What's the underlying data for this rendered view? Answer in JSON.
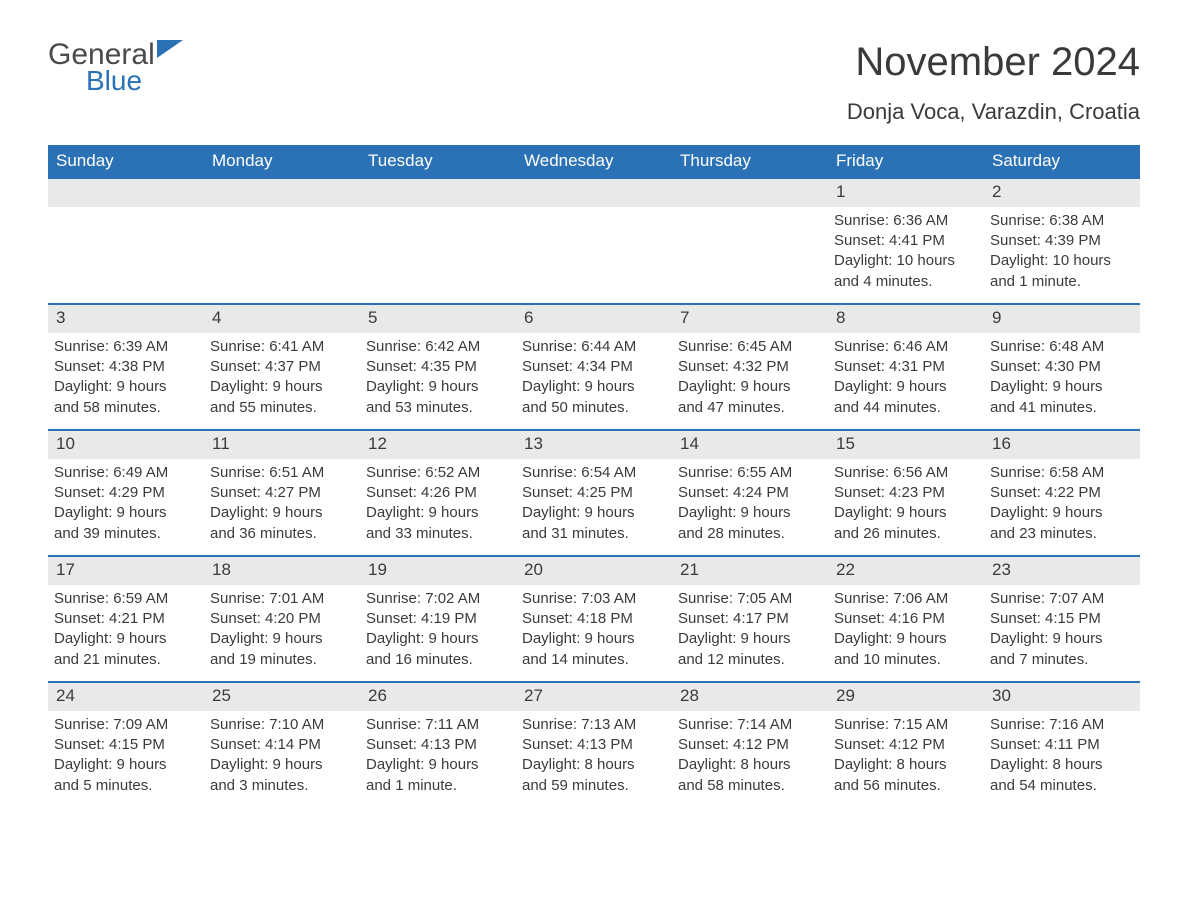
{
  "logo": {
    "general": "General",
    "blue": "Blue"
  },
  "header": {
    "month_title": "November 2024",
    "location": "Donja Voca, Varazdin, Croatia"
  },
  "colors": {
    "header_bg": "#2a72b5",
    "header_text": "#ffffff",
    "daynum_bg": "#e9e9e9",
    "week_border": "#2a72b5",
    "body_text": "#3b3b3b",
    "page_bg": "#ffffff"
  },
  "day_names": [
    "Sunday",
    "Monday",
    "Tuesday",
    "Wednesday",
    "Thursday",
    "Friday",
    "Saturday"
  ],
  "weeks": [
    [
      {
        "day": "",
        "sunrise": "",
        "sunset": "",
        "daylight1": "",
        "daylight2": ""
      },
      {
        "day": "",
        "sunrise": "",
        "sunset": "",
        "daylight1": "",
        "daylight2": ""
      },
      {
        "day": "",
        "sunrise": "",
        "sunset": "",
        "daylight1": "",
        "daylight2": ""
      },
      {
        "day": "",
        "sunrise": "",
        "sunset": "",
        "daylight1": "",
        "daylight2": ""
      },
      {
        "day": "",
        "sunrise": "",
        "sunset": "",
        "daylight1": "",
        "daylight2": ""
      },
      {
        "day": "1",
        "sunrise": "Sunrise: 6:36 AM",
        "sunset": "Sunset: 4:41 PM",
        "daylight1": "Daylight: 10 hours",
        "daylight2": "and 4 minutes."
      },
      {
        "day": "2",
        "sunrise": "Sunrise: 6:38 AM",
        "sunset": "Sunset: 4:39 PM",
        "daylight1": "Daylight: 10 hours",
        "daylight2": "and 1 minute."
      }
    ],
    [
      {
        "day": "3",
        "sunrise": "Sunrise: 6:39 AM",
        "sunset": "Sunset: 4:38 PM",
        "daylight1": "Daylight: 9 hours",
        "daylight2": "and 58 minutes."
      },
      {
        "day": "4",
        "sunrise": "Sunrise: 6:41 AM",
        "sunset": "Sunset: 4:37 PM",
        "daylight1": "Daylight: 9 hours",
        "daylight2": "and 55 minutes."
      },
      {
        "day": "5",
        "sunrise": "Sunrise: 6:42 AM",
        "sunset": "Sunset: 4:35 PM",
        "daylight1": "Daylight: 9 hours",
        "daylight2": "and 53 minutes."
      },
      {
        "day": "6",
        "sunrise": "Sunrise: 6:44 AM",
        "sunset": "Sunset: 4:34 PM",
        "daylight1": "Daylight: 9 hours",
        "daylight2": "and 50 minutes."
      },
      {
        "day": "7",
        "sunrise": "Sunrise: 6:45 AM",
        "sunset": "Sunset: 4:32 PM",
        "daylight1": "Daylight: 9 hours",
        "daylight2": "and 47 minutes."
      },
      {
        "day": "8",
        "sunrise": "Sunrise: 6:46 AM",
        "sunset": "Sunset: 4:31 PM",
        "daylight1": "Daylight: 9 hours",
        "daylight2": "and 44 minutes."
      },
      {
        "day": "9",
        "sunrise": "Sunrise: 6:48 AM",
        "sunset": "Sunset: 4:30 PM",
        "daylight1": "Daylight: 9 hours",
        "daylight2": "and 41 minutes."
      }
    ],
    [
      {
        "day": "10",
        "sunrise": "Sunrise: 6:49 AM",
        "sunset": "Sunset: 4:29 PM",
        "daylight1": "Daylight: 9 hours",
        "daylight2": "and 39 minutes."
      },
      {
        "day": "11",
        "sunrise": "Sunrise: 6:51 AM",
        "sunset": "Sunset: 4:27 PM",
        "daylight1": "Daylight: 9 hours",
        "daylight2": "and 36 minutes."
      },
      {
        "day": "12",
        "sunrise": "Sunrise: 6:52 AM",
        "sunset": "Sunset: 4:26 PM",
        "daylight1": "Daylight: 9 hours",
        "daylight2": "and 33 minutes."
      },
      {
        "day": "13",
        "sunrise": "Sunrise: 6:54 AM",
        "sunset": "Sunset: 4:25 PM",
        "daylight1": "Daylight: 9 hours",
        "daylight2": "and 31 minutes."
      },
      {
        "day": "14",
        "sunrise": "Sunrise: 6:55 AM",
        "sunset": "Sunset: 4:24 PM",
        "daylight1": "Daylight: 9 hours",
        "daylight2": "and 28 minutes."
      },
      {
        "day": "15",
        "sunrise": "Sunrise: 6:56 AM",
        "sunset": "Sunset: 4:23 PM",
        "daylight1": "Daylight: 9 hours",
        "daylight2": "and 26 minutes."
      },
      {
        "day": "16",
        "sunrise": "Sunrise: 6:58 AM",
        "sunset": "Sunset: 4:22 PM",
        "daylight1": "Daylight: 9 hours",
        "daylight2": "and 23 minutes."
      }
    ],
    [
      {
        "day": "17",
        "sunrise": "Sunrise: 6:59 AM",
        "sunset": "Sunset: 4:21 PM",
        "daylight1": "Daylight: 9 hours",
        "daylight2": "and 21 minutes."
      },
      {
        "day": "18",
        "sunrise": "Sunrise: 7:01 AM",
        "sunset": "Sunset: 4:20 PM",
        "daylight1": "Daylight: 9 hours",
        "daylight2": "and 19 minutes."
      },
      {
        "day": "19",
        "sunrise": "Sunrise: 7:02 AM",
        "sunset": "Sunset: 4:19 PM",
        "daylight1": "Daylight: 9 hours",
        "daylight2": "and 16 minutes."
      },
      {
        "day": "20",
        "sunrise": "Sunrise: 7:03 AM",
        "sunset": "Sunset: 4:18 PM",
        "daylight1": "Daylight: 9 hours",
        "daylight2": "and 14 minutes."
      },
      {
        "day": "21",
        "sunrise": "Sunrise: 7:05 AM",
        "sunset": "Sunset: 4:17 PM",
        "daylight1": "Daylight: 9 hours",
        "daylight2": "and 12 minutes."
      },
      {
        "day": "22",
        "sunrise": "Sunrise: 7:06 AM",
        "sunset": "Sunset: 4:16 PM",
        "daylight1": "Daylight: 9 hours",
        "daylight2": "and 10 minutes."
      },
      {
        "day": "23",
        "sunrise": "Sunrise: 7:07 AM",
        "sunset": "Sunset: 4:15 PM",
        "daylight1": "Daylight: 9 hours",
        "daylight2": "and 7 minutes."
      }
    ],
    [
      {
        "day": "24",
        "sunrise": "Sunrise: 7:09 AM",
        "sunset": "Sunset: 4:15 PM",
        "daylight1": "Daylight: 9 hours",
        "daylight2": "and 5 minutes."
      },
      {
        "day": "25",
        "sunrise": "Sunrise: 7:10 AM",
        "sunset": "Sunset: 4:14 PM",
        "daylight1": "Daylight: 9 hours",
        "daylight2": "and 3 minutes."
      },
      {
        "day": "26",
        "sunrise": "Sunrise: 7:11 AM",
        "sunset": "Sunset: 4:13 PM",
        "daylight1": "Daylight: 9 hours",
        "daylight2": "and 1 minute."
      },
      {
        "day": "27",
        "sunrise": "Sunrise: 7:13 AM",
        "sunset": "Sunset: 4:13 PM",
        "daylight1": "Daylight: 8 hours",
        "daylight2": "and 59 minutes."
      },
      {
        "day": "28",
        "sunrise": "Sunrise: 7:14 AM",
        "sunset": "Sunset: 4:12 PM",
        "daylight1": "Daylight: 8 hours",
        "daylight2": "and 58 minutes."
      },
      {
        "day": "29",
        "sunrise": "Sunrise: 7:15 AM",
        "sunset": "Sunset: 4:12 PM",
        "daylight1": "Daylight: 8 hours",
        "daylight2": "and 56 minutes."
      },
      {
        "day": "30",
        "sunrise": "Sunrise: 7:16 AM",
        "sunset": "Sunset: 4:11 PM",
        "daylight1": "Daylight: 8 hours",
        "daylight2": "and 54 minutes."
      }
    ]
  ]
}
